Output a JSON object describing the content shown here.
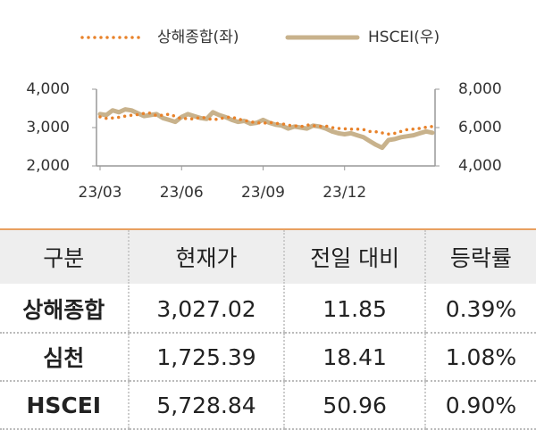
{
  "chart_data": {
    "type": "line",
    "categories": [
      "23/03",
      null,
      null,
      null,
      null,
      null,
      null,
      null,
      null,
      null,
      null,
      null,
      null,
      "23/06",
      null,
      null,
      null,
      null,
      null,
      null,
      null,
      null,
      null,
      null,
      null,
      null,
      "23/09",
      null,
      null,
      null,
      null,
      null,
      null,
      null,
      null,
      null,
      null,
      null,
      null,
      "23/12",
      null,
      null,
      null,
      null,
      null,
      null,
      null,
      null,
      null,
      null,
      null,
      null,
      null,
      null
    ],
    "series": [
      {
        "name": "상해종합(좌)",
        "color": "#e8822a",
        "axis": "y",
        "values": [
          3280,
          3240,
          3250,
          3270,
          3300,
          3320,
          3340,
          3370,
          3380,
          3310,
          3320,
          3350,
          3290,
          3230,
          3240,
          3220,
          3270,
          3250,
          3200,
          3230,
          3260,
          3280,
          3220,
          3190,
          3150,
          3130,
          3110,
          3140,
          3110,
          3100,
          3060,
          3050,
          3020,
          3070,
          3050,
          3030,
          3040,
          3000,
          2980,
          2970,
          2960,
          2960,
          2950,
          2900,
          2890,
          2860,
          2830,
          2850,
          2900,
          2950,
          2960,
          2980,
          3010,
          3027
        ]
      },
      {
        "name": "HSCEI(우)",
        "color": "#c8b28c",
        "axis": "y2",
        "values": [
          6700,
          6650,
          6900,
          6800,
          6950,
          6900,
          6750,
          6600,
          6650,
          6700,
          6500,
          6400,
          6300,
          6550,
          6700,
          6600,
          6500,
          6450,
          6800,
          6650,
          6550,
          6400,
          6300,
          6350,
          6200,
          6250,
          6400,
          6250,
          6150,
          6100,
          5950,
          6050,
          6000,
          5950,
          6100,
          6050,
          5950,
          5800,
          5700,
          5650,
          5700,
          5600,
          5500,
          5300,
          5100,
          4950,
          5350,
          5400,
          5500,
          5550,
          5600,
          5700,
          5800,
          5729
        ]
      }
    ],
    "ylim": [
      2000,
      4000
    ],
    "yticks": [
      {
        "value": 2000,
        "label": "2,000"
      },
      {
        "value": 3000,
        "label": "3,000"
      },
      {
        "value": 4000,
        "label": "4,000"
      }
    ],
    "y2lim": [
      4000,
      8000
    ],
    "y2ticks": [
      {
        "value": 4000,
        "label": "4,000"
      },
      {
        "value": 6000,
        "label": "6,000"
      },
      {
        "value": 8000,
        "label": "8,000"
      }
    ],
    "legend": "top"
  },
  "table": {
    "header": [
      "구분",
      "현재가",
      "전일 대비",
      "등락률"
    ],
    "rows": [
      [
        "상해종합",
        "3,027.02",
        "11.85",
        "0.39%"
      ],
      [
        "심천",
        "1,725.39",
        "18.41",
        "1.08%"
      ],
      [
        "HSCEI",
        "5,728.84",
        "50.96",
        "0.90%"
      ]
    ]
  }
}
